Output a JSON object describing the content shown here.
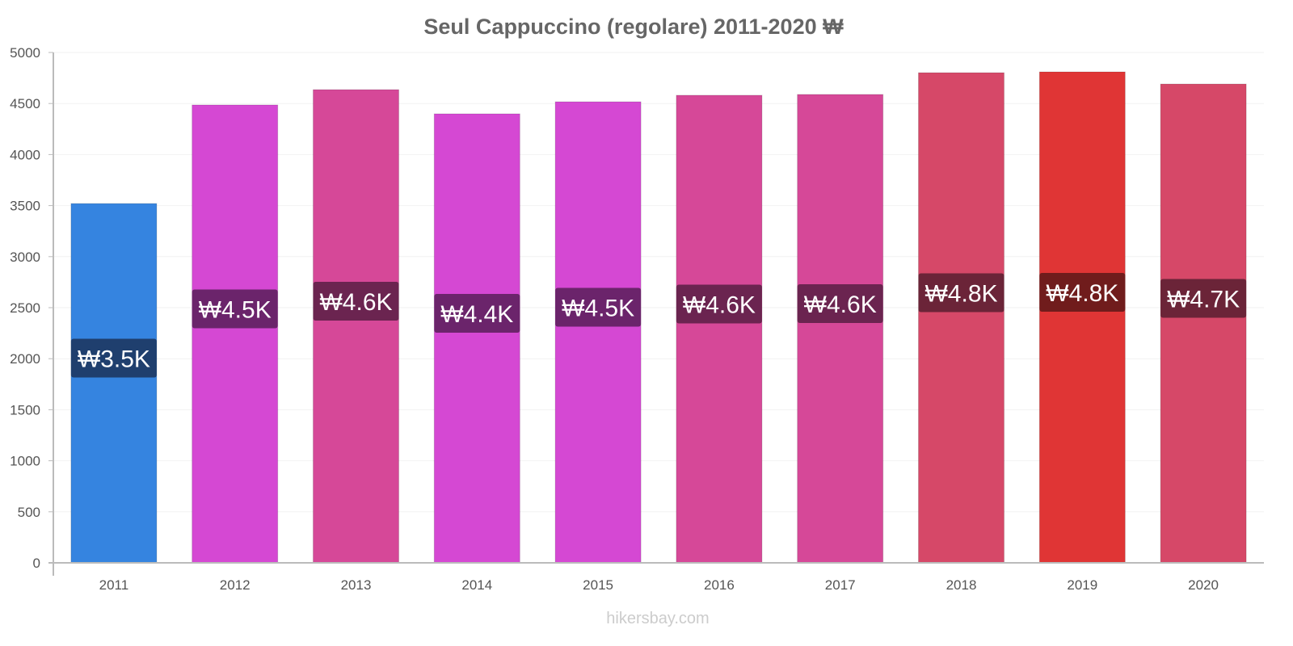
{
  "chart_data": {
    "type": "bar",
    "title": "Seul Cappuccino (regolare) 2011-2020 ₩",
    "categories": [
      "2011",
      "2012",
      "2013",
      "2014",
      "2015",
      "2016",
      "2017",
      "2018",
      "2019",
      "2020"
    ],
    "values": [
      3520,
      4486,
      4636,
      4399,
      4517,
      4581,
      4589,
      4802,
      4810,
      4691
    ],
    "data_labels": [
      "₩3.5K",
      "₩4.5K",
      "₩4.6K",
      "₩4.4K",
      "₩4.5K",
      "₩4.6K",
      "₩4.6K",
      "₩4.8K",
      "₩4.8K",
      "₩4.7K"
    ],
    "bar_colors": [
      "#3584e0",
      "#d548d3",
      "#d64898",
      "#d548d3",
      "#d548d3",
      "#d64898",
      "#d64898",
      "#d64868",
      "#e03535",
      "#d64868"
    ],
    "label_colors": [
      "#1f3f6e",
      "#6b246b",
      "#6b2450",
      "#6b246b",
      "#6b246b",
      "#6b2450",
      "#6b2450",
      "#6b2438",
      "#701c1c",
      "#6b2438"
    ],
    "ylim": [
      0,
      5000
    ],
    "yticks": [
      0,
      500,
      1000,
      1500,
      2000,
      2500,
      3000,
      3500,
      4000,
      4500,
      5000
    ],
    "xlabel": "",
    "ylabel": "",
    "grid": true
  },
  "watermark": "hikersbay.com"
}
